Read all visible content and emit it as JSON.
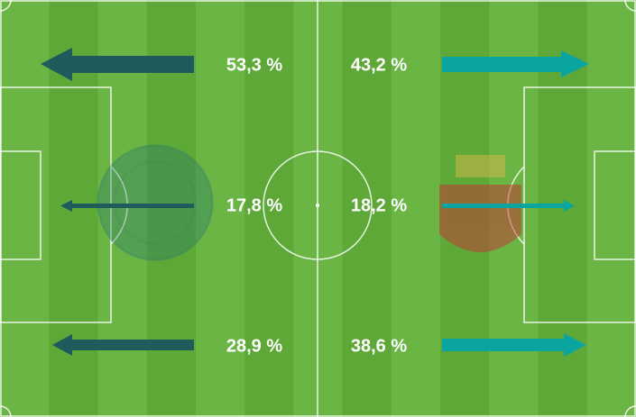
{
  "left_team": {
    "lanes": [
      "53,3 %",
      "17,8 %",
      "28,9 %"
    ]
  },
  "right_team": {
    "lanes": [
      "43,2 %",
      "18,2 %",
      "38,6 %"
    ]
  }
}
